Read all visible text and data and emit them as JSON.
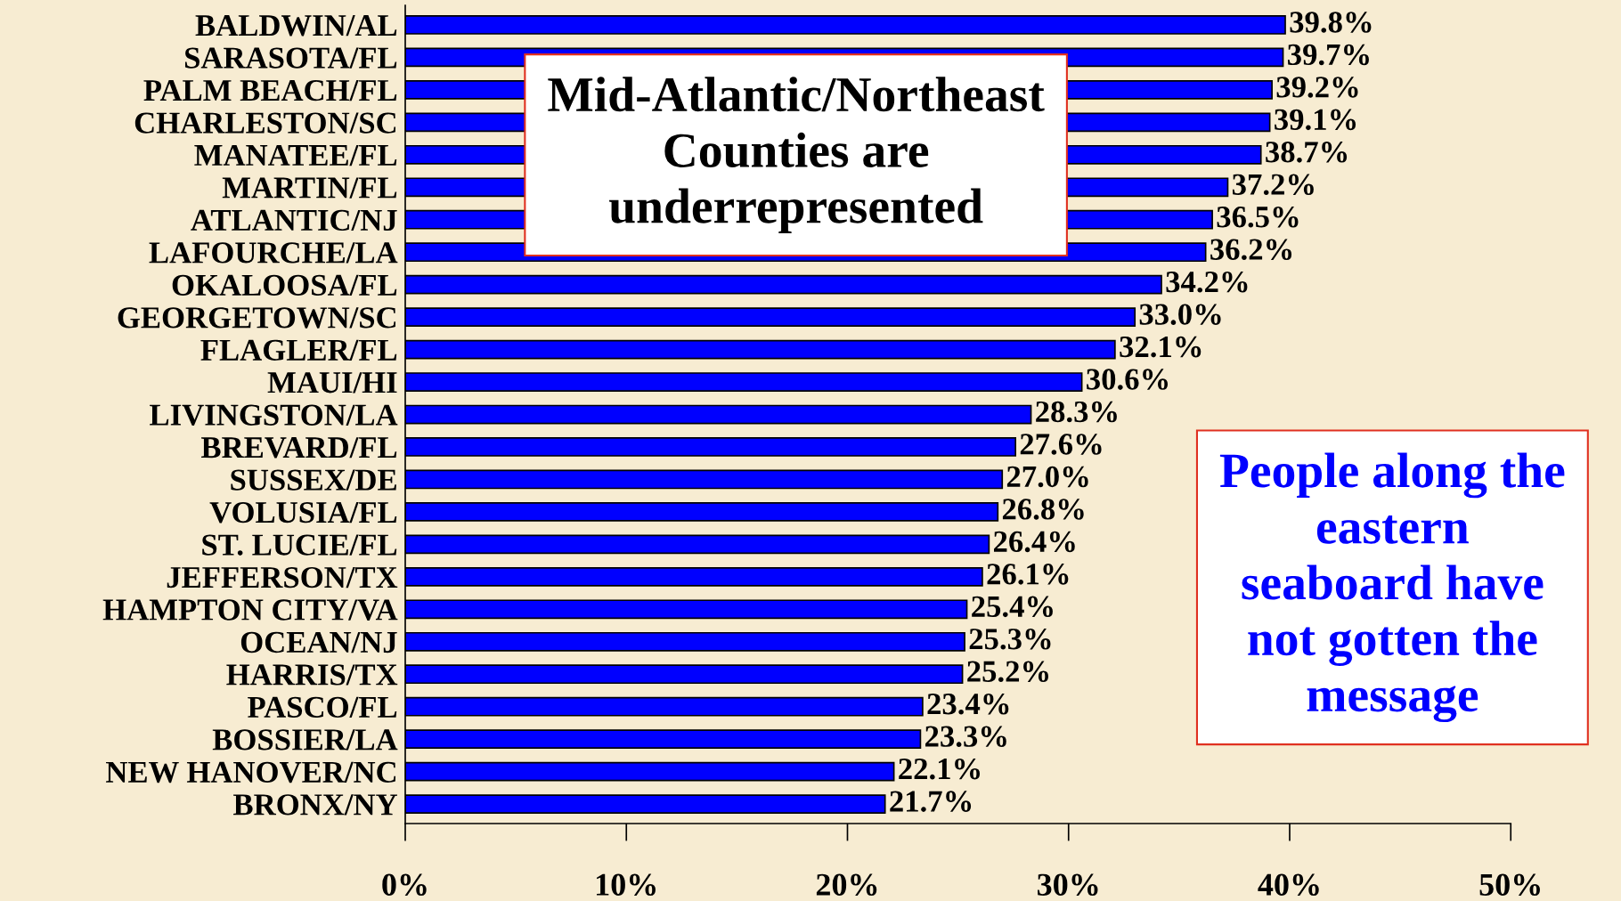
{
  "chart_data": {
    "type": "bar",
    "orientation": "horizontal",
    "categories": [
      "BALDWIN/AL",
      "SARASOTA/FL",
      "PALM BEACH/FL",
      "CHARLESTON/SC",
      "MANATEE/FL",
      "MARTIN/FL",
      "ATLANTIC/NJ",
      "LAFOURCHE/LA",
      "OKALOOSA/FL",
      "GEORGETOWN/SC",
      "FLAGLER/FL",
      "MAUI/HI",
      "LIVINGSTON/LA",
      "BREVARD/FL",
      "SUSSEX/DE",
      "VOLUSIA/FL",
      "ST. LUCIE/FL",
      "JEFFERSON/TX",
      "HAMPTON CITY/VA",
      "OCEAN/NJ",
      "HARRIS/TX",
      "PASCO/FL",
      "BOSSIER/LA",
      "NEW HANOVER/NC",
      "BRONX/NY"
    ],
    "values": [
      39.8,
      39.7,
      39.2,
      39.1,
      38.7,
      37.2,
      36.5,
      36.2,
      34.2,
      33.0,
      32.1,
      30.6,
      28.3,
      27.6,
      27.0,
      26.8,
      26.4,
      26.1,
      25.4,
      25.3,
      25.2,
      23.4,
      23.3,
      22.1,
      21.7
    ],
    "value_labels": [
      "39.8%",
      "39.7%",
      "39.2%",
      "39.1%",
      "38.7%",
      "37.2%",
      "36.5%",
      "36.2%",
      "34.2%",
      "33.0%",
      "32.1%",
      "30.6%",
      "28.3%",
      "27.6%",
      "27.0%",
      "26.8%",
      "26.4%",
      "26.1%",
      "25.4%",
      "25.3%",
      "25.2%",
      "23.4%",
      "23.3%",
      "22.1%",
      "21.7%"
    ],
    "color": "#0000ff",
    "xlim": [
      0,
      50
    ],
    "xticks": [
      {
        "value": 0,
        "label": "0%"
      },
      {
        "value": 10,
        "label": "10%"
      },
      {
        "value": 20,
        "label": "20%"
      },
      {
        "value": 30,
        "label": "30%"
      },
      {
        "value": 40,
        "label": "40%"
      },
      {
        "value": 50,
        "label": "50%"
      }
    ],
    "grid": false,
    "legend": false,
    "annotations": [
      "Mid-Atlantic/Northeast\nCounties are\nunderrepresented",
      "People along the\neastern\nseaboard have\nnot gotten the\nmessage"
    ]
  }
}
